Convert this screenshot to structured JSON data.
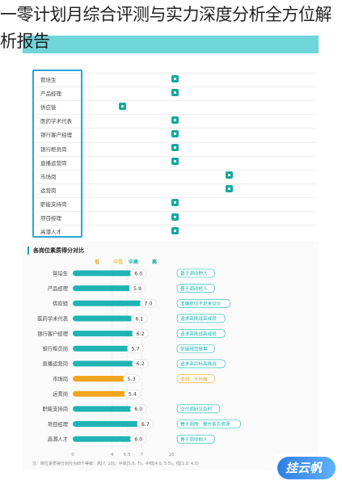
{
  "title": "一零计划月综合评测与实力深度分析全方位解析报告",
  "top_table": {
    "column_headers": [
      "",
      "",
      "",
      ""
    ],
    "roles": [
      "管培生",
      "产品经理",
      "供应链",
      "医药学术代表",
      "银行客户经理",
      "银行柜员岗",
      "直播运营岗",
      "市场岗",
      "运营岗",
      "职能支持岗",
      "项目经理",
      "高潜人才"
    ],
    "marks": [
      1,
      1,
      0,
      1,
      1,
      1,
      1,
      2,
      2,
      1,
      1,
      1
    ]
  },
  "bottom": {
    "section_title": "各岗位素质得分对比",
    "legend": [
      "低",
      "中低",
      "中高",
      "高"
    ],
    "legend_colors": [
      "#f2a51e",
      "#f5c242",
      "#18b2b2",
      "#1aa9a9"
    ]
  },
  "chart_data": {
    "type": "bar",
    "title": "各岗位素质得分对比",
    "categories": [
      "管培生",
      "产品经理",
      "供应链",
      "医药学术代表",
      "银行客户经理",
      "银行柜员岗",
      "直播运营岗",
      "市场岗",
      "运营岗",
      "职能支持岗",
      "项目经理",
      "高潜人才"
    ],
    "values": [
      6.0,
      5.9,
      7.0,
      6.1,
      6.2,
      5.7,
      6.2,
      5.3,
      5.4,
      6.0,
      6.7,
      6.0
    ],
    "bar_colors": [
      "#1fb3b3",
      "#1fb3b3",
      "#1fb3b3",
      "#1fb3b3",
      "#1fb3b3",
      "#1fb3b3",
      "#1fb3b3",
      "#f2a51e",
      "#f2a51e",
      "#1fb3b3",
      "#1fb3b3",
      "#1fb3b3"
    ],
    "tags": [
      "善于调动他人",
      "善于调动他人",
      "准确抓住不足来议价",
      "追求高挑战高成就",
      "追求高挑战高成就",
      "依据规范做事",
      "追求高目标高挑战",
      "低调、不外露",
      "",
      "交付调研又及时",
      "善于调用、整合各方资源",
      "善于调动他人"
    ],
    "x_ticks": [
      "0",
      "4",
      "5.5",
      "7",
      "10"
    ],
    "xlim": [
      0,
      10
    ]
  },
  "note": "注：岗位素质得分划分为四个等级：高[7, 10]，中高[5.5, 7)，中低[4.0, 5.5)，低[1.0, 4.0)",
  "watermark": "挂云帆"
}
